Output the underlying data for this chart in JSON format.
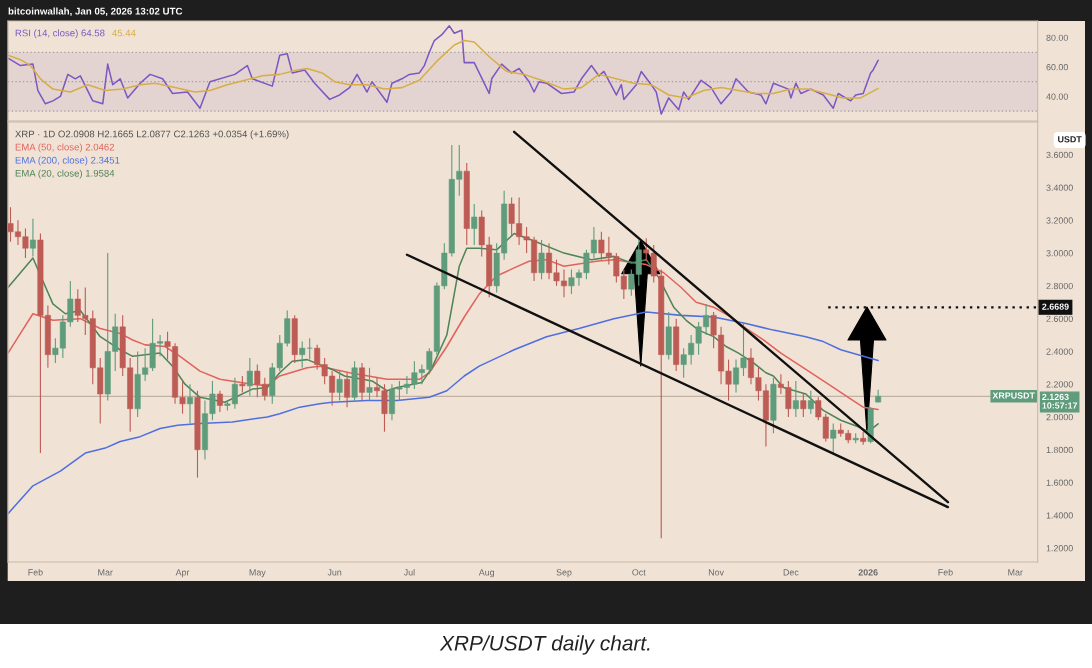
{
  "chart_data": [
    {
      "type": "line",
      "xlim": [
        "2025-01-21",
        "2026-03-10"
      ],
      "ylim": [
        23.3,
        91.3
      ],
      "yticks": [
        {
          "value": 40,
          "label": "40.00"
        },
        {
          "value": 60,
          "label": "60.00"
        },
        {
          "value": 80,
          "label": "80.00"
        }
      ],
      "tick_labels": "y",
      "legend": "top left",
      "bands": [
        {
          "axis": "y",
          "from": 30,
          "to": 70,
          "color": "#e3d4d2"
        }
      ],
      "ref_lines": [
        {
          "axis": "y",
          "value": 70,
          "color": "#a39b9b",
          "line_style": "dotted"
        },
        {
          "axis": "y",
          "value": 50,
          "color": "#a39b9b",
          "line_style": "dotted"
        },
        {
          "axis": "y",
          "value": 30,
          "color": "#a39b9b",
          "line_style": "dotted"
        }
      ],
      "annotations": [
        "bitcoinwallah, Jan 05, 2026 13:02 UTC"
      ],
      "series": [
        {
          "name": "RSI (14, close) 64.58",
          "color": "#7e57c2",
          "x": [
            "2025-01-21",
            "2025-01-26",
            "2025-01-31",
            "2025-02-02",
            "2025-02-05",
            "2025-02-08",
            "2025-02-11",
            "2025-02-14",
            "2025-02-17",
            "2025-02-19",
            "2025-02-24",
            "2025-02-28",
            "2025-03-02",
            "2025-03-04",
            "2025-03-07",
            "2025-03-10",
            "2025-03-15",
            "2025-03-19",
            "2025-03-24",
            "2025-03-28",
            "2025-04-03",
            "2025-04-08",
            "2025-04-12",
            "2025-04-22",
            "2025-04-27",
            "2025-04-29",
            "2025-05-07",
            "2025-05-10",
            "2025-05-13",
            "2025-05-15",
            "2025-05-20",
            "2025-05-24",
            "2025-05-30",
            "2025-06-03",
            "2025-06-07",
            "2025-06-10",
            "2025-06-14",
            "2025-06-16",
            "2025-06-22",
            "2025-06-24",
            "2025-06-28",
            "2025-07-01",
            "2025-07-05",
            "2025-07-07",
            "2025-07-09",
            "2025-07-11",
            "2025-07-14",
            "2025-07-17",
            "2025-07-19",
            "2025-07-22",
            "2025-07-23",
            "2025-07-27",
            "2025-07-31",
            "2025-08-02",
            "2025-08-03",
            "2025-08-07",
            "2025-08-11",
            "2025-08-14",
            "2025-08-18",
            "2025-08-20",
            "2025-08-22",
            "2025-08-25",
            "2025-08-31",
            "2025-09-05",
            "2025-09-08",
            "2025-09-12",
            "2025-09-15",
            "2025-09-17",
            "2025-09-22",
            "2025-09-24",
            "2025-09-25",
            "2025-09-30",
            "2025-10-02",
            "2025-10-06",
            "2025-10-08",
            "2025-10-10",
            "2025-10-13",
            "2025-10-17",
            "2025-10-19",
            "2025-10-21",
            "2025-10-26",
            "2025-10-30",
            "2025-11-03",
            "2025-11-07",
            "2025-11-09",
            "2025-11-14",
            "2025-11-19",
            "2025-11-21",
            "2025-11-24",
            "2025-11-30",
            "2025-12-01",
            "2025-12-03",
            "2025-12-05",
            "2025-12-09",
            "2025-12-14",
            "2025-12-18",
            "2025-12-20",
            "2025-12-25",
            "2025-12-27",
            "2025-12-30",
            "2026-01-02",
            "2026-01-03",
            "2026-01-05"
          ],
          "values": [
            66,
            61,
            62,
            44,
            35,
            37,
            40,
            55,
            52,
            54,
            37,
            35,
            62,
            48,
            52,
            39,
            49,
            55,
            52,
            42,
            43,
            32,
            50,
            55,
            61,
            52,
            47,
            68,
            69,
            56,
            58,
            49,
            38,
            41,
            46,
            55,
            43,
            50,
            36,
            49,
            52,
            55,
            56,
            61,
            70,
            78,
            82,
            88,
            83,
            85,
            63,
            63,
            49,
            42,
            52,
            62,
            56,
            59,
            50,
            43,
            50,
            49,
            42,
            43,
            52,
            61,
            54,
            57,
            41,
            48,
            38,
            48,
            57,
            48,
            43,
            28,
            39,
            31,
            43,
            38,
            51,
            46,
            35,
            43,
            52,
            43,
            41,
            35,
            49,
            45,
            39,
            49,
            42,
            45,
            41,
            32,
            42,
            37,
            41,
            42,
            56,
            58,
            64.58
          ]
        },
        {
          "name": "45.44",
          "color": "#d6ae45",
          "x": [
            "2025-01-21",
            "2025-01-26",
            "2025-01-30",
            "2025-02-03",
            "2025-02-08",
            "2025-02-15",
            "2025-02-22",
            "2025-03-01",
            "2025-03-08",
            "2025-03-15",
            "2025-03-21",
            "2025-03-29",
            "2025-04-06",
            "2025-04-12",
            "2025-04-19",
            "2025-04-26",
            "2025-05-03",
            "2025-05-10",
            "2025-05-17",
            "2025-05-21",
            "2025-05-27",
            "2025-06-01",
            "2025-06-07",
            "2025-06-14",
            "2025-06-21",
            "2025-06-28",
            "2025-07-05",
            "2025-07-12",
            "2025-07-19",
            "2025-07-23",
            "2025-07-27",
            "2025-08-02",
            "2025-08-09",
            "2025-08-16",
            "2025-08-23",
            "2025-09-01",
            "2025-09-08",
            "2025-09-15",
            "2025-09-22",
            "2025-09-29",
            "2025-10-06",
            "2025-10-13",
            "2025-10-20",
            "2025-10-27",
            "2025-11-03",
            "2025-11-10",
            "2025-11-17",
            "2025-11-24",
            "2025-12-01",
            "2025-12-08",
            "2025-12-15",
            "2025-12-22",
            "2025-12-29",
            "2026-01-05"
          ],
          "values": [
            68,
            65,
            61,
            52,
            45,
            43,
            48,
            44,
            45,
            48,
            49,
            46,
            43,
            44,
            48,
            51,
            54,
            55,
            58,
            59,
            56,
            50,
            48,
            48,
            45,
            46,
            51,
            64,
            75,
            78,
            77,
            67,
            57,
            55,
            51,
            45,
            46,
            55,
            52,
            49,
            48,
            41,
            39,
            44,
            46,
            44,
            42,
            42,
            45,
            45,
            42,
            39,
            39,
            45.44
          ]
        }
      ]
    },
    {
      "type": "candlestick",
      "title": "XRP · 1D O2.0908 H2.1665 L2.0877 C2.1263 +0.0354 (+1.69%)",
      "ylabel": "USDT",
      "xlim": [
        "2025-01-21",
        "2026-03-10"
      ],
      "ylim": [
        1.115,
        3.8
      ],
      "xticks": [
        {
          "value": "2025-02-01",
          "label": "Feb"
        },
        {
          "value": "2025-03-01",
          "label": "Mar"
        },
        {
          "value": "2025-04-01",
          "label": "Apr"
        },
        {
          "value": "2025-05-01",
          "label": "May"
        },
        {
          "value": "2025-06-01",
          "label": "Jun"
        },
        {
          "value": "2025-07-01",
          "label": "Jul"
        },
        {
          "value": "2025-08-01",
          "label": "Aug"
        },
        {
          "value": "2025-09-01",
          "label": "Sep"
        },
        {
          "value": "2025-10-01",
          "label": "Oct"
        },
        {
          "value": "2025-11-01",
          "label": "Nov"
        },
        {
          "value": "2025-12-01",
          "label": "Dec"
        },
        {
          "value": "2026-01-01",
          "label": "2026"
        },
        {
          "value": "2026-02-01",
          "label": "Feb"
        },
        {
          "value": "2026-03-01",
          "label": "Mar"
        }
      ],
      "yticks": [
        {
          "value": 1.2,
          "label": "1.2000"
        },
        {
          "value": 1.4,
          "label": "1.4000"
        },
        {
          "value": 1.6,
          "label": "1.6000"
        },
        {
          "value": 1.8,
          "label": "1.8000"
        },
        {
          "value": 2.0,
          "label": "2.0000"
        },
        {
          "value": 2.2,
          "label": "2.2000"
        },
        {
          "value": 2.4,
          "label": "2.4000"
        },
        {
          "value": 2.6,
          "label": "2.6000"
        },
        {
          "value": 2.8,
          "label": "2.8000"
        },
        {
          "value": 3.0,
          "label": "3.0000"
        },
        {
          "value": 3.2,
          "label": "3.2000"
        },
        {
          "value": 3.4,
          "label": "3.4000"
        },
        {
          "value": 3.6,
          "label": "3.6000"
        }
      ],
      "legend": "top left",
      "ref_lines": [
        {
          "axis": "y",
          "value": 2.1263,
          "label": "2.1263\n10:57:17",
          "color": "#c0b3a6"
        }
      ],
      "annotations": [
        {
          "text": "XRPUSDT",
          "y": 2.1263
        },
        "XRP/USDT daily chart."
      ],
      "x": [
        "2025-01-22",
        "2025-01-25",
        "2025-01-28",
        "2025-01-31",
        "2025-02-03",
        "2025-02-06",
        "2025-02-09",
        "2025-02-12",
        "2025-02-15",
        "2025-02-18",
        "2025-02-21",
        "2025-02-24",
        "2025-02-27",
        "2025-03-02",
        "2025-03-05",
        "2025-03-08",
        "2025-03-11",
        "2025-03-14",
        "2025-03-17",
        "2025-03-20",
        "2025-03-23",
        "2025-03-26",
        "2025-03-29",
        "2025-04-01",
        "2025-04-04",
        "2025-04-07",
        "2025-04-10",
        "2025-04-13",
        "2025-04-16",
        "2025-04-19",
        "2025-04-22",
        "2025-04-25",
        "2025-04-28",
        "2025-05-01",
        "2025-05-04",
        "2025-05-07",
        "2025-05-10",
        "2025-05-13",
        "2025-05-16",
        "2025-05-19",
        "2025-05-22",
        "2025-05-25",
        "2025-05-28",
        "2025-05-31",
        "2025-06-03",
        "2025-06-06",
        "2025-06-09",
        "2025-06-12",
        "2025-06-15",
        "2025-06-18",
        "2025-06-21",
        "2025-06-24",
        "2025-06-27",
        "2025-06-30",
        "2025-07-03",
        "2025-07-06",
        "2025-07-09",
        "2025-07-12",
        "2025-07-15",
        "2025-07-18",
        "2025-07-21",
        "2025-07-24",
        "2025-07-27",
        "2025-07-30",
        "2025-08-02",
        "2025-08-05",
        "2025-08-08",
        "2025-08-11",
        "2025-08-14",
        "2025-08-17",
        "2025-08-20",
        "2025-08-23",
        "2025-08-26",
        "2025-08-29",
        "2025-09-01",
        "2025-09-04",
        "2025-09-07",
        "2025-09-10",
        "2025-09-13",
        "2025-09-16",
        "2025-09-19",
        "2025-09-22",
        "2025-09-25",
        "2025-09-28",
        "2025-10-01",
        "2025-10-04",
        "2025-10-07",
        "2025-10-10",
        "2025-10-13",
        "2025-10-16",
        "2025-10-19",
        "2025-10-22",
        "2025-10-25",
        "2025-10-28",
        "2025-10-31",
        "2025-11-03",
        "2025-11-06",
        "2025-11-09",
        "2025-11-12",
        "2025-11-15",
        "2025-11-18",
        "2025-11-21",
        "2025-11-24",
        "2025-11-27",
        "2025-11-30",
        "2025-12-03",
        "2025-12-06",
        "2025-12-09",
        "2025-12-12",
        "2025-12-15",
        "2025-12-18",
        "2025-12-21",
        "2025-12-24",
        "2025-12-27",
        "2025-12-30",
        "2026-01-02",
        "2026-01-05"
      ],
      "ohlc": [
        [
          3.18,
          3.28,
          3.07,
          3.13
        ],
        [
          3.13,
          3.2,
          3.05,
          3.1
        ],
        [
          3.1,
          3.15,
          2.97,
          3.03
        ],
        [
          3.03,
          3.21,
          2.98,
          3.08
        ],
        [
          3.08,
          3.12,
          1.78,
          2.62
        ],
        [
          2.62,
          2.68,
          2.3,
          2.38
        ],
        [
          2.38,
          2.48,
          2.33,
          2.42
        ],
        [
          2.42,
          2.62,
          2.36,
          2.58
        ],
        [
          2.58,
          2.83,
          2.55,
          2.72
        ],
        [
          2.72,
          2.78,
          2.58,
          2.62
        ],
        [
          2.62,
          2.79,
          2.5,
          2.6
        ],
        [
          2.6,
          2.65,
          2.2,
          2.3
        ],
        [
          2.3,
          2.36,
          1.96,
          2.14
        ],
        [
          2.14,
          3.0,
          2.1,
          2.4
        ],
        [
          2.4,
          2.63,
          2.28,
          2.55
        ],
        [
          2.55,
          2.62,
          2.25,
          2.3
        ],
        [
          2.3,
          2.36,
          1.91,
          2.05
        ],
        [
          2.05,
          2.4,
          2.0,
          2.26
        ],
        [
          2.26,
          2.42,
          2.22,
          2.3
        ],
        [
          2.3,
          2.6,
          2.28,
          2.45
        ],
        [
          2.45,
          2.5,
          2.37,
          2.46
        ],
        [
          2.46,
          2.52,
          2.35,
          2.43
        ],
        [
          2.43,
          2.45,
          2.08,
          2.12
        ],
        [
          2.12,
          2.22,
          2.02,
          2.08
        ],
        [
          2.08,
          2.2,
          1.96,
          2.12
        ],
        [
          2.12,
          2.16,
          1.63,
          1.8
        ],
        [
          1.8,
          2.1,
          1.74,
          2.02
        ],
        [
          2.02,
          2.22,
          1.98,
          2.14
        ],
        [
          2.14,
          2.16,
          2.03,
          2.07
        ],
        [
          2.07,
          2.1,
          2.04,
          2.08
        ],
        [
          2.08,
          2.24,
          2.05,
          2.2
        ],
        [
          2.2,
          2.25,
          2.15,
          2.19
        ],
        [
          2.19,
          2.36,
          2.13,
          2.28
        ],
        [
          2.28,
          2.32,
          2.12,
          2.2
        ],
        [
          2.2,
          2.24,
          2.1,
          2.13
        ],
        [
          2.13,
          2.33,
          2.08,
          2.3
        ],
        [
          2.3,
          2.5,
          2.28,
          2.45
        ],
        [
          2.45,
          2.65,
          2.43,
          2.6
        ],
        [
          2.6,
          2.62,
          2.33,
          2.38
        ],
        [
          2.38,
          2.46,
          2.3,
          2.42
        ],
        [
          2.42,
          2.48,
          2.35,
          2.42
        ],
        [
          2.42,
          2.44,
          2.29,
          2.32
        ],
        [
          2.32,
          2.36,
          2.2,
          2.25
        ],
        [
          2.25,
          2.28,
          2.07,
          2.15
        ],
        [
          2.15,
          2.28,
          2.1,
          2.23
        ],
        [
          2.23,
          2.27,
          2.06,
          2.12
        ],
        [
          2.12,
          2.34,
          2.1,
          2.3
        ],
        [
          2.3,
          2.33,
          2.1,
          2.15
        ],
        [
          2.15,
          2.3,
          2.1,
          2.18
        ],
        [
          2.18,
          2.24,
          2.12,
          2.16
        ],
        [
          2.16,
          2.2,
          1.91,
          2.02
        ],
        [
          2.02,
          2.2,
          1.98,
          2.17
        ],
        [
          2.17,
          2.22,
          2.1,
          2.18
        ],
        [
          2.18,
          2.25,
          2.14,
          2.2
        ],
        [
          2.2,
          2.34,
          2.17,
          2.27
        ],
        [
          2.27,
          2.32,
          2.2,
          2.29
        ],
        [
          2.29,
          2.42,
          2.26,
          2.4
        ],
        [
          2.4,
          2.82,
          2.38,
          2.8
        ],
        [
          2.8,
          3.06,
          2.78,
          3.0
        ],
        [
          3.0,
          3.66,
          2.98,
          3.45
        ],
        [
          3.45,
          3.66,
          3.35,
          3.5
        ],
        [
          3.5,
          3.55,
          3.05,
          3.15
        ],
        [
          3.15,
          3.3,
          3.05,
          3.22
        ],
        [
          3.22,
          3.26,
          2.98,
          3.05
        ],
        [
          3.05,
          3.1,
          2.73,
          2.8
        ],
        [
          2.8,
          3.06,
          2.76,
          3.0
        ],
        [
          3.0,
          3.38,
          2.96,
          3.3
        ],
        [
          3.3,
          3.34,
          3.1,
          3.18
        ],
        [
          3.18,
          3.34,
          3.05,
          3.1
        ],
        [
          3.1,
          3.16,
          3.0,
          3.08
        ],
        [
          3.08,
          3.1,
          2.83,
          2.88
        ],
        [
          2.88,
          3.08,
          2.84,
          3.0
        ],
        [
          3.0,
          3.06,
          2.84,
          2.88
        ],
        [
          2.88,
          2.96,
          2.8,
          2.83
        ],
        [
          2.83,
          2.9,
          2.73,
          2.8
        ],
        [
          2.8,
          2.9,
          2.75,
          2.85
        ],
        [
          2.85,
          2.9,
          2.8,
          2.88
        ],
        [
          2.88,
          3.02,
          2.84,
          3.0
        ],
        [
          3.0,
          3.16,
          2.97,
          3.08
        ],
        [
          3.08,
          3.13,
          2.96,
          3.0
        ],
        [
          3.0,
          3.1,
          2.93,
          2.98
        ],
        [
          2.98,
          3.0,
          2.82,
          2.86
        ],
        [
          2.86,
          2.9,
          2.72,
          2.78
        ],
        [
          2.78,
          2.9,
          2.74,
          2.87
        ],
        [
          2.87,
          3.08,
          2.8,
          3.02
        ],
        [
          3.02,
          3.09,
          2.95,
          3.0
        ],
        [
          3.0,
          3.05,
          2.82,
          2.86
        ],
        [
          2.86,
          2.9,
          1.26,
          2.38
        ],
        [
          2.38,
          2.64,
          2.35,
          2.55
        ],
        [
          2.55,
          2.6,
          2.28,
          2.32
        ],
        [
          2.32,
          2.42,
          2.24,
          2.38
        ],
        [
          2.38,
          2.5,
          2.32,
          2.45
        ],
        [
          2.45,
          2.58,
          2.38,
          2.55
        ],
        [
          2.55,
          2.69,
          2.5,
          2.62
        ],
        [
          2.62,
          2.64,
          2.42,
          2.5
        ],
        [
          2.5,
          2.55,
          2.2,
          2.28
        ],
        [
          2.28,
          2.35,
          2.1,
          2.2
        ],
        [
          2.2,
          2.35,
          2.15,
          2.3
        ],
        [
          2.3,
          2.58,
          2.25,
          2.36
        ],
        [
          2.36,
          2.42,
          2.2,
          2.24
        ],
        [
          2.24,
          2.3,
          2.1,
          2.16
        ],
        [
          2.16,
          2.2,
          1.82,
          1.98
        ],
        [
          1.98,
          2.24,
          1.9,
          2.2
        ],
        [
          2.2,
          2.26,
          2.14,
          2.18
        ],
        [
          2.18,
          2.22,
          2.0,
          2.05
        ],
        [
          2.05,
          2.22,
          2.0,
          2.1
        ],
        [
          2.1,
          2.14,
          2.0,
          2.05
        ],
        [
          2.05,
          2.16,
          2.02,
          2.1
        ],
        [
          2.1,
          2.12,
          1.98,
          2.0
        ],
        [
          2.0,
          2.02,
          1.85,
          1.87
        ],
        [
          1.87,
          1.96,
          1.78,
          1.92
        ],
        [
          1.92,
          1.96,
          1.88,
          1.9
        ],
        [
          1.9,
          1.92,
          1.84,
          1.86
        ],
        [
          1.86,
          1.9,
          1.84,
          1.87
        ],
        [
          1.87,
          1.91,
          1.83,
          1.85
        ],
        [
          1.85,
          2.06,
          1.84,
          2.05
        ],
        [
          2.0908,
          2.1665,
          2.0877,
          2.1263
        ]
      ],
      "series": [
        {
          "type": "line",
          "color": "#111111",
          "x": [
            "2025-08-12",
            "2026-02-02"
          ],
          "values": [
            3.74,
            1.48
          ]
        },
        {
          "type": "line",
          "color": "#111111",
          "x": [
            "2025-06-30",
            "2026-02-02"
          ],
          "values": [
            2.99,
            1.45
          ]
        },
        {
          "type": "line",
          "color": "#111111",
          "line_style": "dotted",
          "x": [
            "2025-12-16",
            "2026-03-10"
          ],
          "values": [
            2.6689,
            2.6689
          ],
          "value_labels": [
            null,
            "2.6689"
          ]
        },
        {
          "type": "line",
          "name": "EMA (50, close) 2.0462",
          "color": "#e0635c",
          "x": [
            "2025-01-21",
            "2025-01-26",
            "2025-01-31",
            "2025-02-08",
            "2025-02-19",
            "2025-02-27",
            "2025-03-07",
            "2025-03-12",
            "2025-03-17",
            "2025-03-25",
            "2025-03-31",
            "2025-04-08",
            "2025-04-16",
            "2025-04-29",
            "2025-05-05",
            "2025-05-10",
            "2025-05-21",
            "2025-05-26",
            "2025-06-07",
            "2025-06-22",
            "2025-07-05",
            "2025-07-09",
            "2025-07-16",
            "2025-07-23",
            "2025-07-29",
            "2025-08-05",
            "2025-08-12",
            "2025-08-18",
            "2025-08-25",
            "2025-09-01",
            "2025-09-14",
            "2025-09-21",
            "2025-10-04",
            "2025-10-11",
            "2025-10-18",
            "2025-10-24",
            "2025-10-31",
            "2025-11-07",
            "2025-11-13",
            "2025-11-20",
            "2025-11-27",
            "2025-12-07",
            "2025-12-18",
            "2025-12-24",
            "2025-12-30",
            "2026-01-05"
          ],
          "values": [
            2.39,
            2.51,
            2.63,
            2.59,
            2.6,
            2.54,
            2.51,
            2.47,
            2.44,
            2.43,
            2.37,
            2.28,
            2.23,
            2.2,
            2.19,
            2.25,
            2.3,
            2.31,
            2.27,
            2.23,
            2.23,
            2.27,
            2.43,
            2.61,
            2.75,
            2.86,
            2.91,
            2.95,
            2.96,
            2.92,
            2.95,
            2.96,
            2.93,
            2.88,
            2.79,
            2.7,
            2.67,
            2.61,
            2.54,
            2.47,
            2.39,
            2.29,
            2.18,
            2.12,
            2.06,
            2.0462
          ]
        },
        {
          "type": "line",
          "name": "EMA (200, close) 2.3451",
          "color": "#4f6fe0",
          "x": [
            "2025-01-21",
            "2025-01-31",
            "2025-02-11",
            "2025-02-21",
            "2025-03-01",
            "2025-03-07",
            "2025-03-15",
            "2025-03-23",
            "2025-03-30",
            "2025-04-08",
            "2025-04-21",
            "2025-05-05",
            "2025-05-10",
            "2025-05-18",
            "2025-05-26",
            "2025-05-31",
            "2025-06-14",
            "2025-06-26",
            "2025-07-09",
            "2025-07-16",
            "2025-07-23",
            "2025-07-29",
            "2025-08-12",
            "2025-08-25",
            "2025-09-07",
            "2025-09-21",
            "2025-10-04",
            "2025-10-18",
            "2025-10-31",
            "2025-11-13",
            "2025-11-24",
            "2025-12-07",
            "2025-12-14",
            "2025-12-21",
            "2025-12-28",
            "2026-01-05"
          ],
          "values": [
            1.41,
            1.58,
            1.67,
            1.78,
            1.81,
            1.85,
            1.88,
            1.93,
            1.95,
            1.96,
            1.97,
            2.0,
            2.02,
            2.06,
            2.08,
            2.09,
            2.1,
            2.1,
            2.12,
            2.16,
            2.25,
            2.31,
            2.41,
            2.49,
            2.54,
            2.6,
            2.64,
            2.62,
            2.61,
            2.57,
            2.53,
            2.49,
            2.46,
            2.41,
            2.38,
            2.3451
          ]
        },
        {
          "type": "line",
          "name": "EMA (20, close) 1.9584",
          "color": "#4e8456",
          "x": [
            "2025-01-21",
            "2025-01-26",
            "2025-01-31",
            "2025-02-04",
            "2025-02-08",
            "2025-02-13",
            "2025-02-19",
            "2025-02-27",
            "2025-03-03",
            "2025-03-07",
            "2025-03-12",
            "2025-03-23",
            "2025-03-28",
            "2025-04-02",
            "2025-04-08",
            "2025-04-18",
            "2025-04-29",
            "2025-05-05",
            "2025-05-10",
            "2025-05-15",
            "2025-05-21",
            "2025-05-31",
            "2025-06-05",
            "2025-06-16",
            "2025-06-22",
            "2025-06-26",
            "2025-07-06",
            "2025-07-10",
            "2025-07-16",
            "2025-07-21",
            "2025-07-24",
            "2025-07-29",
            "2025-08-05",
            "2025-08-12",
            "2025-08-19",
            "2025-09-01",
            "2025-09-12",
            "2025-09-21",
            "2025-09-28",
            "2025-10-04",
            "2025-10-09",
            "2025-10-15",
            "2025-10-20",
            "2025-10-25",
            "2025-10-31",
            "2025-11-05",
            "2025-11-10",
            "2025-11-16",
            "2025-11-21",
            "2025-11-24",
            "2025-11-28",
            "2025-12-07",
            "2025-12-14",
            "2025-12-21",
            "2025-12-28",
            "2026-01-01",
            "2026-01-05"
          ],
          "values": [
            2.79,
            2.88,
            2.97,
            2.83,
            2.69,
            2.63,
            2.65,
            2.49,
            2.45,
            2.41,
            2.37,
            2.39,
            2.31,
            2.2,
            2.12,
            2.09,
            2.17,
            2.18,
            2.27,
            2.34,
            2.35,
            2.29,
            2.25,
            2.22,
            2.16,
            2.18,
            2.21,
            2.3,
            2.5,
            2.92,
            3.03,
            3.03,
            3.02,
            3.12,
            3.08,
            3.0,
            2.96,
            2.98,
            2.94,
            2.96,
            2.85,
            2.67,
            2.59,
            2.53,
            2.49,
            2.43,
            2.39,
            2.33,
            2.27,
            2.25,
            2.18,
            2.14,
            2.04,
            1.98,
            1.94,
            1.91,
            1.9584
          ]
        }
      ]
    }
  ]
}
